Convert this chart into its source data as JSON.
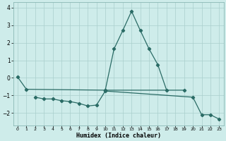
{
  "xlabel": "Humidex (Indice chaleur)",
  "bg_color": "#ceecea",
  "line_color": "#2a6b65",
  "grid_color": "#aacfcc",
  "axis_color": "#8ab8b5",
  "line1_x": [
    0,
    1,
    10,
    19
  ],
  "line1_y": [
    0.05,
    -0.65,
    -0.7,
    -0.7
  ],
  "line2_x": [
    2,
    3,
    4,
    5,
    6,
    7,
    8,
    9,
    10,
    20,
    21,
    22,
    23
  ],
  "line2_y": [
    -1.1,
    -1.2,
    -1.2,
    -1.3,
    -1.35,
    -1.45,
    -1.6,
    -1.55,
    -0.75,
    -1.1,
    -2.1,
    -2.1,
    -2.35
  ],
  "line3_x": [
    10,
    11,
    12,
    13,
    14,
    15,
    16,
    17
  ],
  "line3_y": [
    -0.7,
    1.65,
    2.7,
    3.8,
    2.7,
    1.65,
    0.75,
    -0.7
  ],
  "xlim": [
    -0.5,
    23.5
  ],
  "ylim": [
    -2.7,
    4.3
  ],
  "yticks": [
    -2,
    -1,
    0,
    1,
    2,
    3,
    4
  ],
  "xticks": [
    0,
    1,
    2,
    3,
    4,
    5,
    6,
    7,
    8,
    9,
    10,
    11,
    12,
    13,
    14,
    15,
    16,
    17,
    18,
    19,
    20,
    21,
    22,
    23
  ]
}
